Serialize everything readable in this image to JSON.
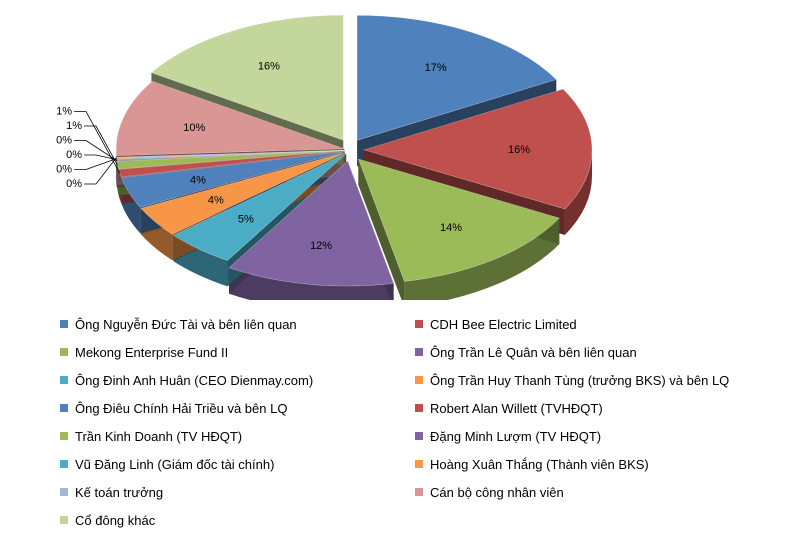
{
  "chart_data": {
    "type": "pie",
    "title": "",
    "labels": [
      "Ông Nguyễn Đức Tài và bên liên quan",
      "CDH Bee Electric Limited",
      "Mekong Enterprise Fund II",
      "Ông Trần Lê Quân và bên liên quan",
      "Ông Đinh Anh Huân (CEO Dienmay.com)",
      "Ông Trần Huy Thanh Tùng (trưởng BKS) và bên LQ",
      "Ông Điêu Chính Hải Triều và bên LQ",
      "Robert Alan Willett (TVHĐQT)",
      "Trần Kinh Doanh (TV HĐQT)",
      "Đặng Minh Lượm (TV HĐQT)",
      "Vũ Đăng Linh (Giám đốc tài chính)",
      "Hoàng Xuân Thắng (Thành viên BKS)",
      "Kế toán trưởng",
      "Cán bộ công nhân viên",
      "Cổ đông khác"
    ],
    "values": [
      17,
      16,
      14,
      12,
      5,
      4,
      4,
      1,
      1,
      0,
      0,
      0,
      0,
      10,
      16
    ],
    "value_labels": [
      "17%",
      "16%",
      "14%",
      "12%",
      "5%",
      "4%",
      "4%",
      "1%",
      "1%",
      "0%",
      "0%",
      "0%",
      "0%",
      "10%",
      "16%"
    ],
    "colors": [
      "#4F81BD",
      "#C0504D",
      "#9BBB59",
      "#8064A2",
      "#4BACC6",
      "#F79646",
      "#4F81BD",
      "#C0504D",
      "#9BBB59",
      "#8064A2",
      "#4BACC6",
      "#F79646",
      "#A5B6D7",
      "#D99694",
      "#C3D69B"
    ],
    "legend_position": "bottom"
  },
  "legend": {
    "items": [
      {
        "label": "Ông Nguyễn Đức Tài và bên liên quan",
        "color": "#4F81BD"
      },
      {
        "label": "CDH Bee Electric Limited",
        "color": "#C0504D"
      },
      {
        "label": "Mekong Enterprise Fund II",
        "color": "#9BBB59"
      },
      {
        "label": "Ông Trần Lê Quân và bên liên quan",
        "color": "#8064A2"
      },
      {
        "label": "Ông Đinh Anh Huân (CEO Dienmay.com)",
        "color": "#4BACC6"
      },
      {
        "label": "Ông Trần Huy Thanh Tùng (trưởng BKS) và bên LQ",
        "color": "#F79646"
      },
      {
        "label": "Ông Điêu Chính Hải Triều và bên LQ",
        "color": "#4F81BD"
      },
      {
        "label": "Robert Alan Willett (TVHĐQT)",
        "color": "#C0504D"
      },
      {
        "label": "Trần Kinh Doanh (TV HĐQT)",
        "color": "#9BBB59"
      },
      {
        "label": "Đặng Minh Lượm (TV HĐQT)",
        "color": "#8064A2"
      },
      {
        "label": "Vũ Đăng Linh (Giám đốc tài chính)",
        "color": "#4BACC6"
      },
      {
        "label": "Hoàng Xuân Thắng (Thành viên BKS)",
        "color": "#F79646"
      },
      {
        "label": "Kế toán trưởng",
        "color": "#A5B6D7"
      },
      {
        "label": "Cán bộ công nhân viên",
        "color": "#D99694"
      },
      {
        "label": "Cổ đông khác",
        "color": "#C3D69B"
      }
    ]
  }
}
